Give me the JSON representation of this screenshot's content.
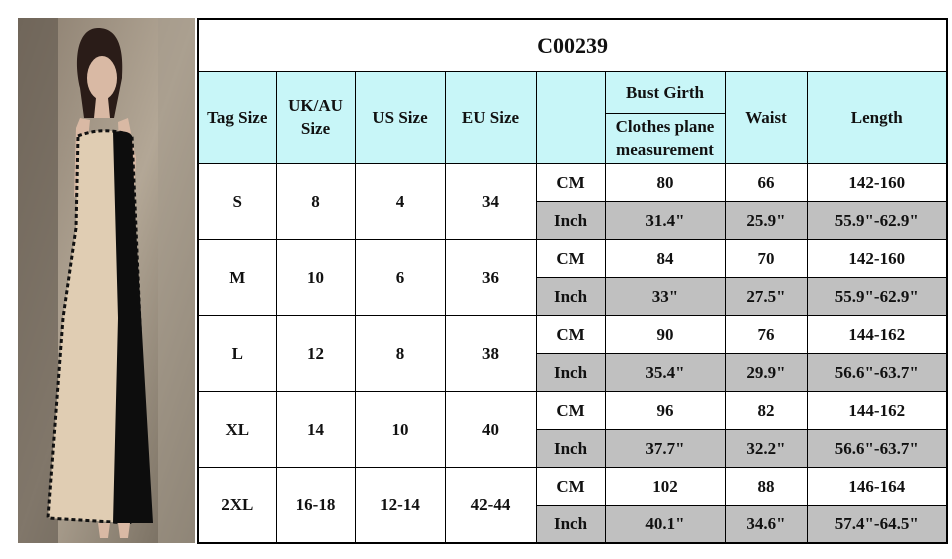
{
  "title": "C00239",
  "header": {
    "tag_size": "Tag Size",
    "uk_au": "UK/AU Size",
    "us": "US Size",
    "eu": "EU Size",
    "bust": "Bust Girth",
    "bust_note": "Clothes plane measurement",
    "waist": "Waist",
    "length": "Length"
  },
  "rows": [
    {
      "tag": "S",
      "uk": 8,
      "us": 4,
      "eu": 34,
      "cm": {
        "unit": "CM",
        "bust": 80,
        "waist": 66,
        "length": "142-160"
      },
      "inch": {
        "unit": "Inch",
        "bust": "31.4\"",
        "waist": "25.9\"",
        "length": "55.9\"-62.9\""
      }
    },
    {
      "tag": "M",
      "uk": 10,
      "us": 6,
      "eu": 36,
      "cm": {
        "unit": "CM",
        "bust": 84,
        "waist": 70,
        "length": "142-160"
      },
      "inch": {
        "unit": "Inch",
        "bust": "33\"",
        "waist": "27.5\"",
        "length": "55.9\"-62.9\""
      }
    },
    {
      "tag": "L",
      "uk": 12,
      "us": 8,
      "eu": 38,
      "cm": {
        "unit": "CM",
        "bust": 90,
        "waist": 76,
        "length": "144-162"
      },
      "inch": {
        "unit": "Inch",
        "bust": "35.4\"",
        "waist": "29.9\"",
        "length": "56.6\"-63.7\""
      }
    },
    {
      "tag": "XL",
      "uk": 14,
      "us": 10,
      "eu": 40,
      "cm": {
        "unit": "CM",
        "bust": 96,
        "waist": 82,
        "length": "144-162"
      },
      "inch": {
        "unit": "Inch",
        "bust": "37.7\"",
        "waist": "32.2\"",
        "length": "56.6\"-63.7\""
      }
    },
    {
      "tag": "2XL",
      "uk": "16-18",
      "us": "12-14",
      "eu": "42-44",
      "cm": {
        "unit": "CM",
        "bust": 102,
        "waist": 88,
        "length": "146-164"
      },
      "inch": {
        "unit": "Inch",
        "bust": "40.1\"",
        "waist": "34.6\"",
        "length": "57.4\"-64.5\""
      }
    }
  ]
}
